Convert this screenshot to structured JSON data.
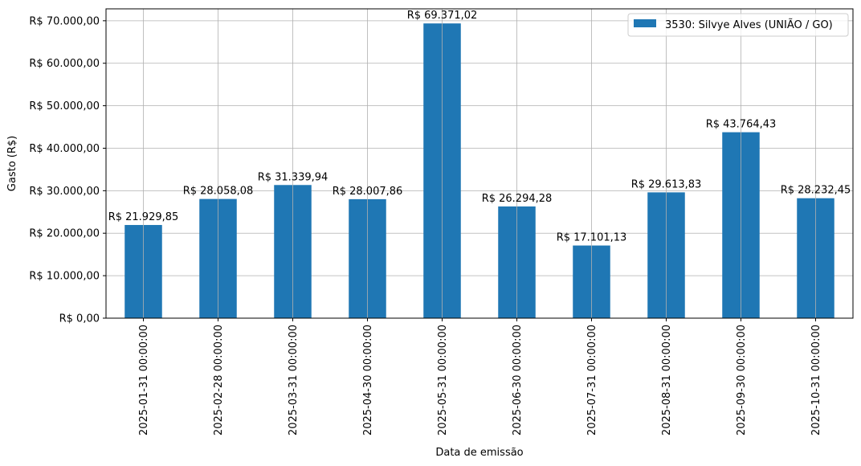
{
  "chart_data": {
    "type": "bar",
    "title": "",
    "xlabel": "Data de emissão",
    "ylabel": "Gasto (R$)",
    "ylim": [
      0,
      72806.2
    ],
    "yticks": [
      0,
      10000,
      20000,
      30000,
      40000,
      50000,
      60000,
      70000
    ],
    "ytick_labels": [
      "R$ 0,00",
      "R$ 10.000,00",
      "R$ 20.000,00",
      "R$ 30.000,00",
      "R$ 40.000,00",
      "R$ 50.000,00",
      "R$ 60.000,00",
      "R$ 70.000,00"
    ],
    "categories": [
      "2025-01-31 00:00:00",
      "2025-02-28 00:00:00",
      "2025-03-31 00:00:00",
      "2025-04-30 00:00:00",
      "2025-05-31 00:00:00",
      "2025-06-30 00:00:00",
      "2025-07-31 00:00:00",
      "2025-08-31 00:00:00",
      "2025-09-30 00:00:00",
      "2025-10-31 00:00:00"
    ],
    "series": [
      {
        "name": "3530: Silvye Alves (UNIÃO / GO)",
        "color": "#1f77b4",
        "values": [
          21929.85,
          28058.08,
          31339.94,
          28007.86,
          69371.02,
          26294.28,
          17101.13,
          29613.83,
          43764.43,
          28232.45
        ],
        "labels": [
          "R$ 21.929,85",
          "R$ 28.058,08",
          "R$ 31.339,94",
          "R$ 28.007,86",
          "R$ 69.371,02",
          "R$ 26.294,28",
          "R$ 17.101,13",
          "R$ 29.613,83",
          "R$ 43.764,43",
          "R$ 28.232,45"
        ]
      }
    ],
    "grid": true,
    "legend_position": "top-right"
  }
}
